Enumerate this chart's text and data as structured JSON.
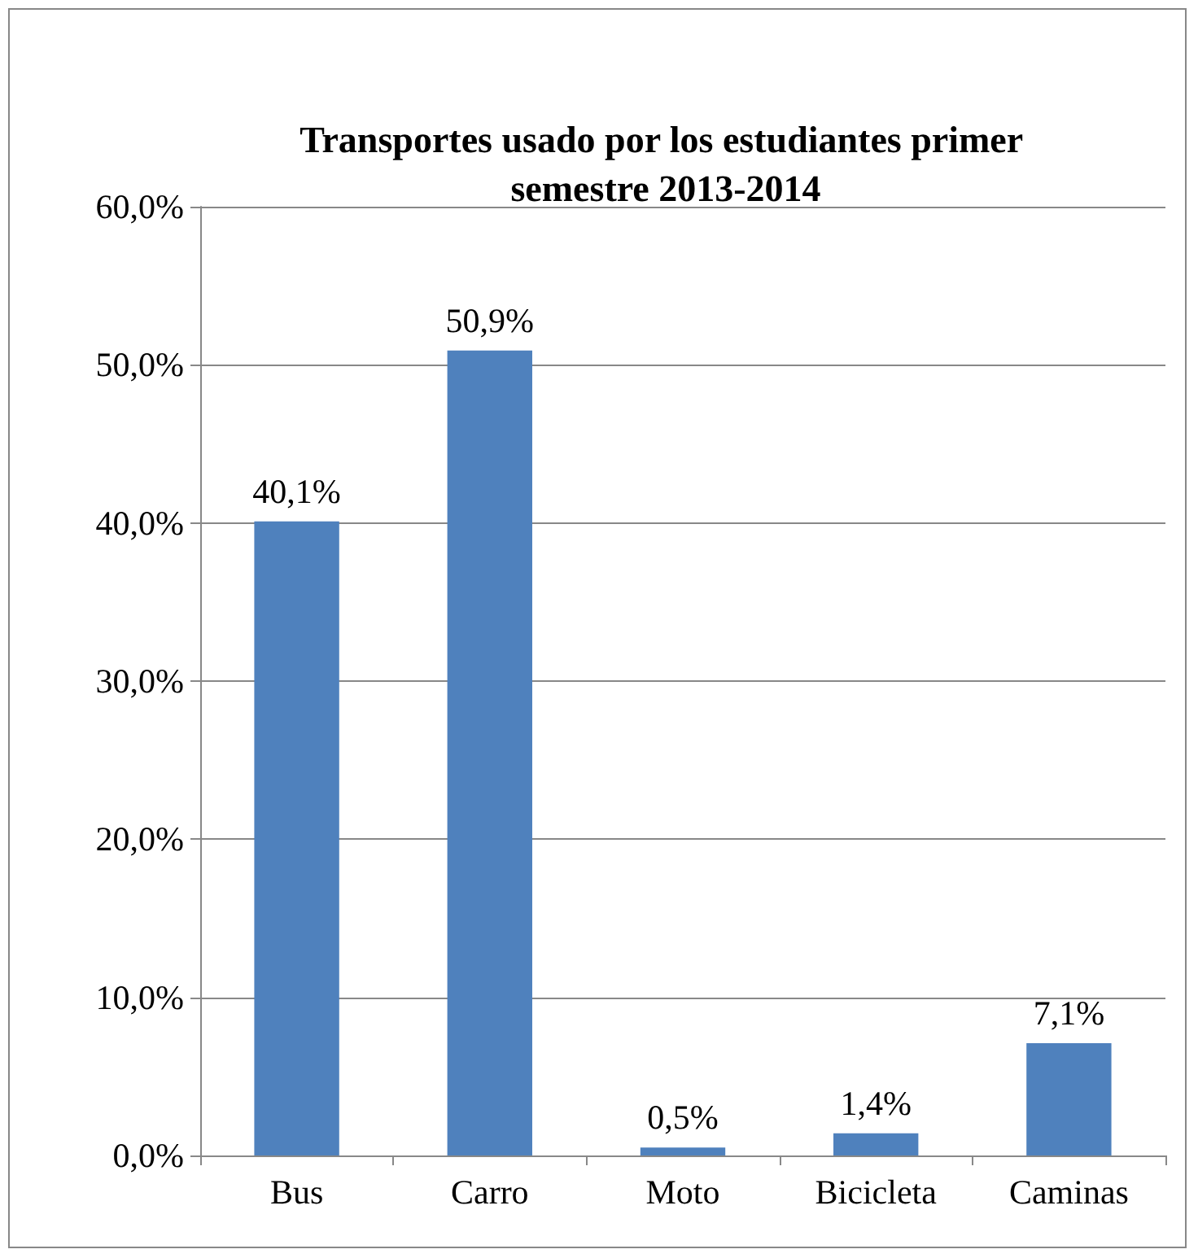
{
  "chart_data": {
    "type": "bar",
    "title": "Transportes usado por los estudiantes primer semestre 2013-2014",
    "categories": [
      "Bus",
      "Carro",
      "Moto",
      "Bicicleta",
      "Caminas"
    ],
    "values": [
      40.1,
      50.9,
      0.5,
      1.4,
      7.1
    ],
    "value_labels": [
      "40,1%",
      "50,9%",
      "0,5%",
      "1,4%",
      "7,1%"
    ],
    "color": "#4f81bd",
    "ylim": [
      0,
      60
    ],
    "yticks": [
      {
        "value": 0,
        "label": "0,0%"
      },
      {
        "value": 10,
        "label": "10,0%"
      },
      {
        "value": 20,
        "label": "20,0%"
      },
      {
        "value": 30,
        "label": "30,0%"
      },
      {
        "value": 40,
        "label": "40,0%"
      },
      {
        "value": 50,
        "label": "50,0%"
      },
      {
        "value": 60,
        "label": "60,0%"
      }
    ],
    "grid": "y"
  }
}
